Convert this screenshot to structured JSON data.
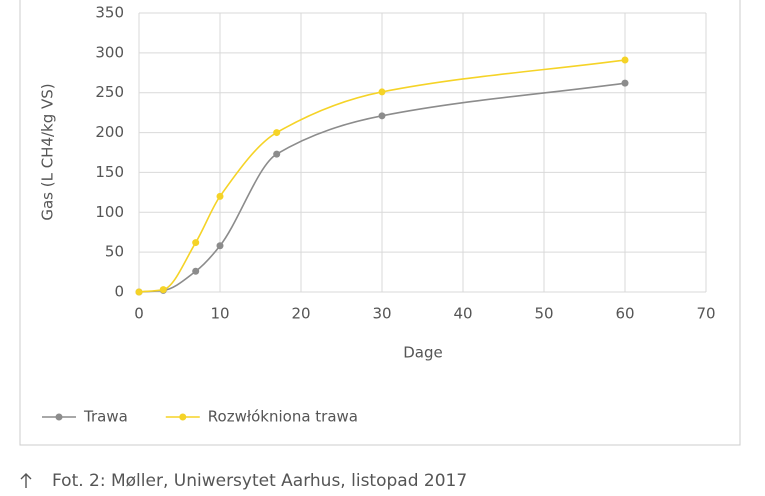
{
  "chart_data": {
    "type": "line",
    "x_label": "Dage",
    "y_label": "Gas (L CH4/kg VS)",
    "x": [
      0,
      3,
      7,
      10,
      17,
      30,
      60
    ],
    "series": [
      {
        "name": "Trawa",
        "color": "#8c8c8c",
        "values": [
          0,
          2,
          26,
          58,
          173,
          221,
          262
        ]
      },
      {
        "name": "Rozwłókniona trawa",
        "color": "#f5d327",
        "values": [
          0,
          3,
          62,
          120,
          200,
          251,
          291
        ]
      }
    ],
    "xlim": [
      0,
      70
    ],
    "xticks": [
      0,
      10,
      20,
      30,
      40,
      50,
      60,
      70
    ],
    "ylim": [
      0,
      350
    ],
    "yticks": [
      0,
      50,
      100,
      150,
      200,
      250,
      300,
      350
    ],
    "grid": true,
    "legend": "bottom-left"
  },
  "caption": "Fot. 2: Møller, Uniwersytet Aarhus, listopad 2017"
}
